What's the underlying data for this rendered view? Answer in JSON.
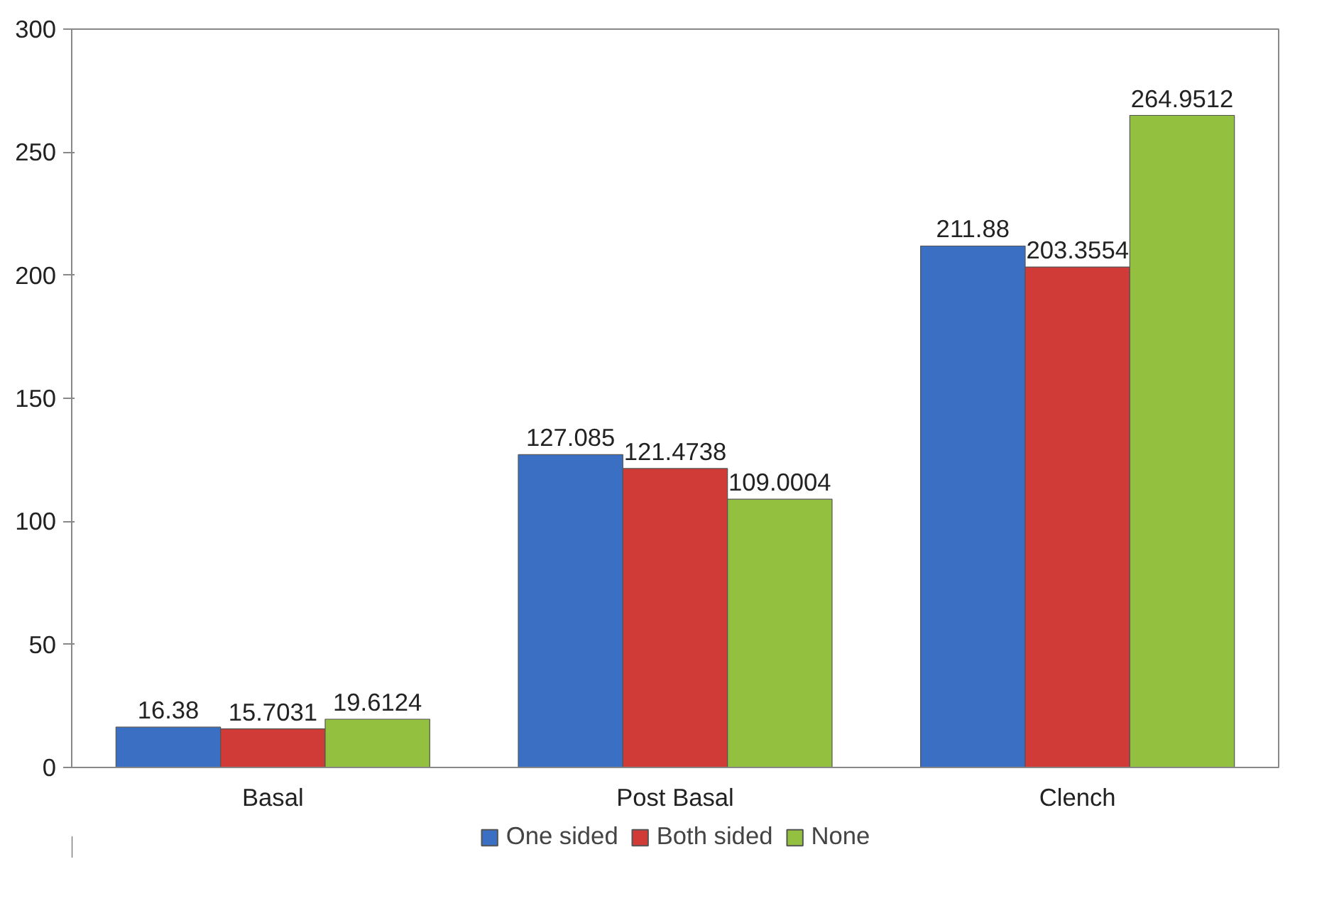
{
  "chart_data": {
    "type": "bar",
    "categories": [
      "Basal",
      "Post Basal",
      "Clench"
    ],
    "series": [
      {
        "name": "One sided",
        "color": "#3a6fc4",
        "values": [
          16.38,
          127.085,
          211.88
        ]
      },
      {
        "name": "Both sided",
        "color": "#d03a37",
        "values": [
          15.7031,
          121.4738,
          203.3554
        ]
      },
      {
        "name": "None",
        "color": "#93c13f",
        "values": [
          19.6124,
          109.0004,
          264.9512
        ]
      }
    ],
    "ylim": [
      0,
      300
    ],
    "yticks": [
      0,
      50,
      100,
      150,
      200,
      250,
      300
    ],
    "data_labels": true,
    "grid": false,
    "legend": "bottom"
  }
}
